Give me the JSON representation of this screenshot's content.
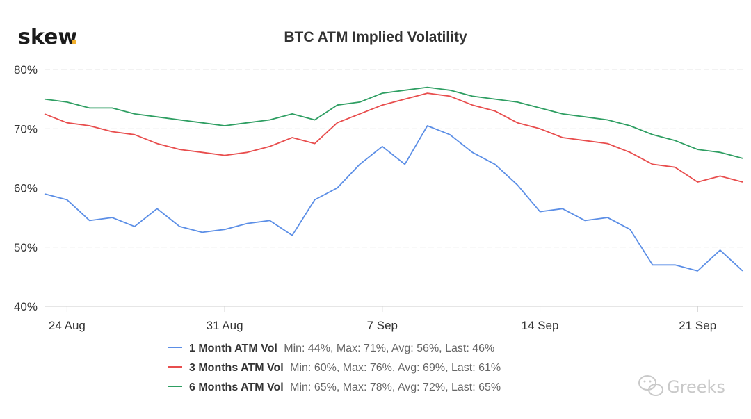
{
  "logo": {
    "text": "skew",
    "dot": ".",
    "dot_color": "#f2b02d"
  },
  "watermark": {
    "text": "Greeks",
    "icon": "wechat-icon"
  },
  "colors": {
    "1 Month ATM Vol": "#5b8ee6",
    "3 Months ATM Vol": "#e84d4d",
    "6 Months ATM Vol": "#2e9e62",
    "grid": "#e6e6e6",
    "axis": "#cccccc"
  },
  "chart_data": {
    "type": "line",
    "title": "BTC ATM Implied Volatility",
    "xlabel": "",
    "ylabel": "",
    "x_axis": {
      "type": "date",
      "range": [
        "2020-08-23",
        "2020-09-23"
      ],
      "tick_labels": [
        "24 Aug",
        "31 Aug",
        "7 Sep",
        "14 Sep",
        "21 Sep"
      ],
      "tick_dates": [
        "2020-08-24",
        "2020-08-31",
        "2020-09-07",
        "2020-09-14",
        "2020-09-21"
      ]
    },
    "y_axis": {
      "range": [
        40,
        80
      ],
      "tick_labels": [
        "40%",
        "50%",
        "60%",
        "70%",
        "80%"
      ],
      "tick_values": [
        40,
        50,
        60,
        70,
        80
      ],
      "unit": "%"
    },
    "grid": "horizontal",
    "legend_position": "bottom",
    "series": [
      {
        "name": "1 Month ATM Vol",
        "stats": "Min: 44%, Max: 71%, Avg: 56%, Last: 46%",
        "points": [
          [
            "2020-08-23",
            59
          ],
          [
            "2020-08-24",
            58
          ],
          [
            "2020-08-25",
            54.5
          ],
          [
            "2020-08-26",
            55
          ],
          [
            "2020-08-27",
            53.5
          ],
          [
            "2020-08-28",
            56.5
          ],
          [
            "2020-08-29",
            53.5
          ],
          [
            "2020-08-30",
            52.5
          ],
          [
            "2020-08-31",
            53
          ],
          [
            "2020-09-01",
            54
          ],
          [
            "2020-09-02",
            54.5
          ],
          [
            "2020-09-03",
            52
          ],
          [
            "2020-09-04",
            58
          ],
          [
            "2020-09-05",
            60
          ],
          [
            "2020-09-06",
            64
          ],
          [
            "2020-09-07",
            67
          ],
          [
            "2020-09-08",
            64
          ],
          [
            "2020-09-09",
            70.5
          ],
          [
            "2020-09-10",
            69
          ],
          [
            "2020-09-11",
            66
          ],
          [
            "2020-09-12",
            64
          ],
          [
            "2020-09-13",
            60.5
          ],
          [
            "2020-09-14",
            56
          ],
          [
            "2020-09-15",
            56.5
          ],
          [
            "2020-09-16",
            54.5
          ],
          [
            "2020-09-17",
            55
          ],
          [
            "2020-09-18",
            53
          ],
          [
            "2020-09-19",
            47
          ],
          [
            "2020-09-20",
            47
          ],
          [
            "2020-09-21",
            46
          ],
          [
            "2020-09-22",
            49.5
          ],
          [
            "2020-09-23",
            46
          ]
        ]
      },
      {
        "name": "3 Months ATM Vol",
        "stats": "Min: 60%, Max: 76%, Avg: 69%, Last: 61%",
        "points": [
          [
            "2020-08-23",
            72.5
          ],
          [
            "2020-08-24",
            71
          ],
          [
            "2020-08-25",
            70.5
          ],
          [
            "2020-08-26",
            69.5
          ],
          [
            "2020-08-27",
            69
          ],
          [
            "2020-08-28",
            67.5
          ],
          [
            "2020-08-29",
            66.5
          ],
          [
            "2020-08-30",
            66
          ],
          [
            "2020-08-31",
            65.5
          ],
          [
            "2020-09-01",
            66
          ],
          [
            "2020-09-02",
            67
          ],
          [
            "2020-09-03",
            68.5
          ],
          [
            "2020-09-04",
            67.5
          ],
          [
            "2020-09-05",
            71
          ],
          [
            "2020-09-06",
            72.5
          ],
          [
            "2020-09-07",
            74
          ],
          [
            "2020-09-08",
            75
          ],
          [
            "2020-09-09",
            76
          ],
          [
            "2020-09-10",
            75.5
          ],
          [
            "2020-09-11",
            74
          ],
          [
            "2020-09-12",
            73
          ],
          [
            "2020-09-13",
            71
          ],
          [
            "2020-09-14",
            70
          ],
          [
            "2020-09-15",
            68.5
          ],
          [
            "2020-09-16",
            68
          ],
          [
            "2020-09-17",
            67.5
          ],
          [
            "2020-09-18",
            66
          ],
          [
            "2020-09-19",
            64
          ],
          [
            "2020-09-20",
            63.5
          ],
          [
            "2020-09-21",
            61
          ],
          [
            "2020-09-22",
            62
          ],
          [
            "2020-09-23",
            61
          ]
        ]
      },
      {
        "name": "6 Months ATM Vol",
        "stats": "Min: 65%, Max: 78%, Avg: 72%, Last: 65%",
        "points": [
          [
            "2020-08-23",
            75
          ],
          [
            "2020-08-24",
            74.5
          ],
          [
            "2020-08-25",
            73.5
          ],
          [
            "2020-08-26",
            73.5
          ],
          [
            "2020-08-27",
            72.5
          ],
          [
            "2020-08-28",
            72
          ],
          [
            "2020-08-29",
            71.5
          ],
          [
            "2020-08-30",
            71
          ],
          [
            "2020-08-31",
            70.5
          ],
          [
            "2020-09-01",
            71
          ],
          [
            "2020-09-02",
            71.5
          ],
          [
            "2020-09-03",
            72.5
          ],
          [
            "2020-09-04",
            71.5
          ],
          [
            "2020-09-05",
            74
          ],
          [
            "2020-09-06",
            74.5
          ],
          [
            "2020-09-07",
            76
          ],
          [
            "2020-09-08",
            76.5
          ],
          [
            "2020-09-09",
            77
          ],
          [
            "2020-09-10",
            76.5
          ],
          [
            "2020-09-11",
            75.5
          ],
          [
            "2020-09-12",
            75
          ],
          [
            "2020-09-13",
            74.5
          ],
          [
            "2020-09-14",
            73.5
          ],
          [
            "2020-09-15",
            72.5
          ],
          [
            "2020-09-16",
            72
          ],
          [
            "2020-09-17",
            71.5
          ],
          [
            "2020-09-18",
            70.5
          ],
          [
            "2020-09-19",
            69
          ],
          [
            "2020-09-20",
            68
          ],
          [
            "2020-09-21",
            66.5
          ],
          [
            "2020-09-22",
            66
          ],
          [
            "2020-09-23",
            65
          ]
        ]
      }
    ]
  }
}
